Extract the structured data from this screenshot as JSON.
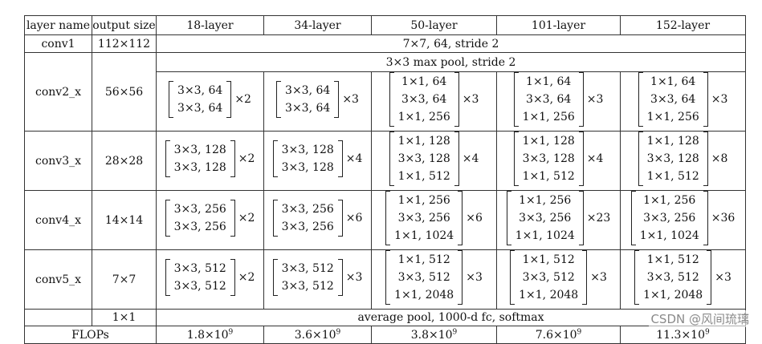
{
  "headers": [
    "layer name",
    "output size",
    "18-layer",
    "34-layer",
    "50-layer",
    "101-layer",
    "152-layer"
  ],
  "conv1": {
    "name": "conv1",
    "size": "112×112",
    "spec": "7×7, 64, stride 2"
  },
  "pool": {
    "spec": "3×3 max pool, stride 2"
  },
  "blocks": [
    {
      "name": "conv2_x",
      "size": "56×56",
      "cells": [
        {
          "rows": [
            "3×3, 64",
            "3×3, 64"
          ],
          "mult": "×2"
        },
        {
          "rows": [
            "3×3, 64",
            "3×3, 64"
          ],
          "mult": "×3"
        },
        {
          "rows": [
            "1×1, 64",
            "3×3, 64",
            "1×1, 256"
          ],
          "mult": "×3"
        },
        {
          "rows": [
            "1×1, 64",
            "3×3, 64",
            "1×1, 256"
          ],
          "mult": "×3"
        },
        {
          "rows": [
            "1×1, 64",
            "3×3, 64",
            "1×1, 256"
          ],
          "mult": "×3"
        }
      ]
    },
    {
      "name": "conv3_x",
      "size": "28×28",
      "cells": [
        {
          "rows": [
            "3×3, 128",
            "3×3, 128"
          ],
          "mult": "×2"
        },
        {
          "rows": [
            "3×3, 128",
            "3×3, 128"
          ],
          "mult": "×4"
        },
        {
          "rows": [
            "1×1, 128",
            "3×3, 128",
            "1×1, 512"
          ],
          "mult": "×4"
        },
        {
          "rows": [
            "1×1, 128",
            "3×3, 128",
            "1×1, 512"
          ],
          "mult": "×4"
        },
        {
          "rows": [
            "1×1, 128",
            "3×3, 128",
            "1×1, 512"
          ],
          "mult": "×8"
        }
      ]
    },
    {
      "name": "conv4_x",
      "size": "14×14",
      "cells": [
        {
          "rows": [
            "3×3, 256",
            "3×3, 256"
          ],
          "mult": "×2"
        },
        {
          "rows": [
            "3×3, 256",
            "3×3, 256"
          ],
          "mult": "×6"
        },
        {
          "rows": [
            "1×1, 256",
            "3×3, 256",
            "1×1, 1024"
          ],
          "mult": "×6"
        },
        {
          "rows": [
            "1×1, 256",
            "3×3, 256",
            "1×1, 1024"
          ],
          "mult": "×23"
        },
        {
          "rows": [
            "1×1, 256",
            "3×3, 256",
            "1×1, 1024"
          ],
          "mult": "×36"
        }
      ]
    },
    {
      "name": "conv5_x",
      "size": "7×7",
      "cells": [
        {
          "rows": [
            "3×3, 512",
            "3×3, 512"
          ],
          "mult": "×2"
        },
        {
          "rows": [
            "3×3, 512",
            "3×3, 512"
          ],
          "mult": "×3"
        },
        {
          "rows": [
            "1×1, 512",
            "3×3, 512",
            "1×1, 2048"
          ],
          "mult": "×3"
        },
        {
          "rows": [
            "1×1, 512",
            "3×3, 512",
            "1×1, 2048"
          ],
          "mult": "×3"
        },
        {
          "rows": [
            "1×1, 512",
            "3×3, 512",
            "1×1, 2048"
          ],
          "mult": "×3"
        }
      ]
    }
  ],
  "final": {
    "size": "1×1",
    "spec": "average pool, 1000-d fc, softmax"
  },
  "flops": {
    "label": "FLOPs",
    "values": [
      {
        "base": "1.8×10",
        "exp": "9"
      },
      {
        "base": "3.6×10",
        "exp": "9"
      },
      {
        "base": "3.8×10",
        "exp": "9"
      },
      {
        "base": "7.6×10",
        "exp": "9"
      },
      {
        "base": "11.3×10",
        "exp": "9"
      }
    ]
  },
  "watermark": "CSDN @风间琉璃"
}
